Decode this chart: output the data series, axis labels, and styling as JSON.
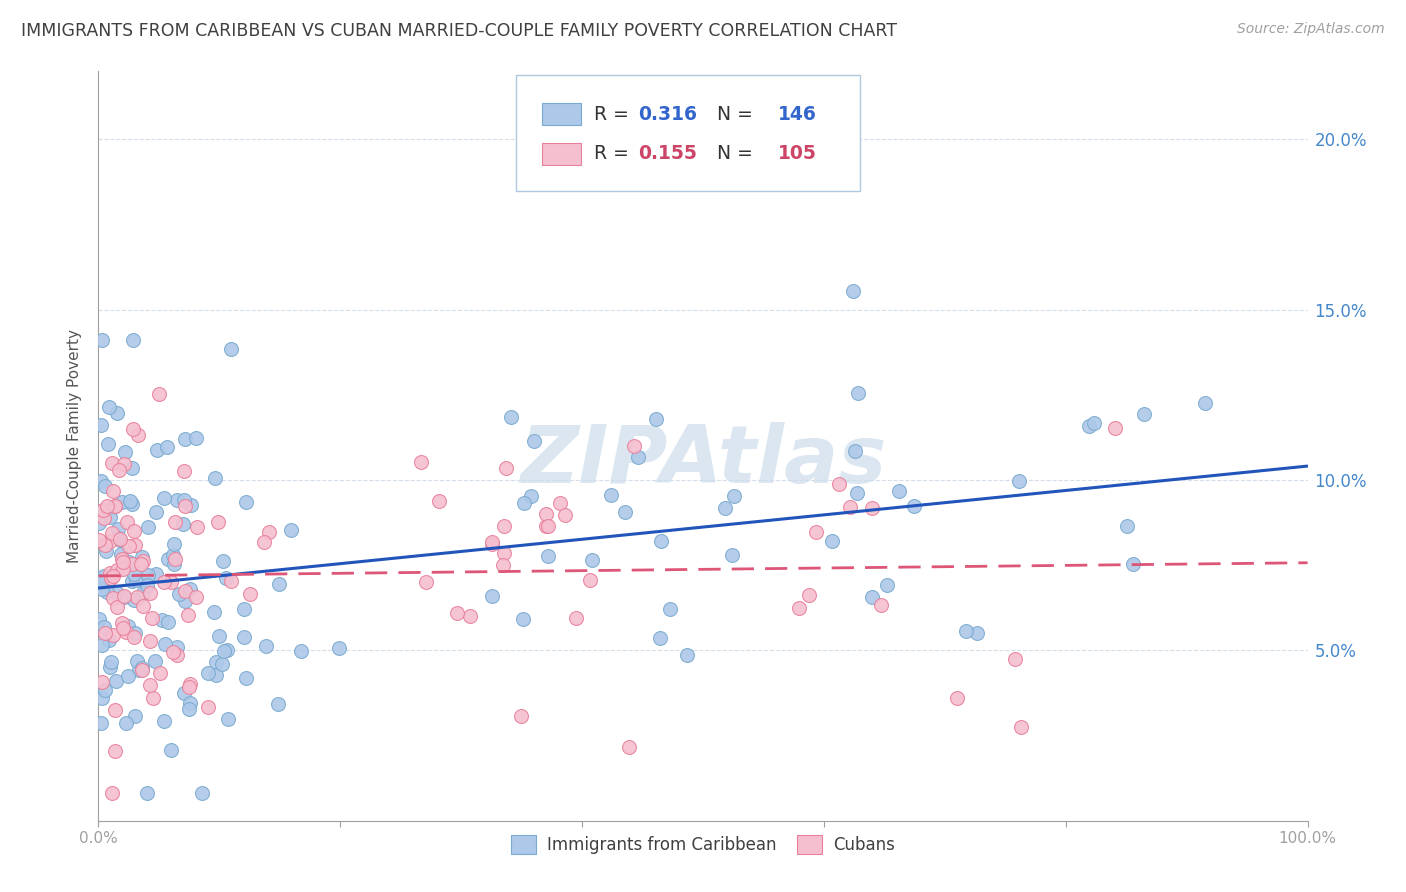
{
  "title": "IMMIGRANTS FROM CARIBBEAN VS CUBAN MARRIED-COUPLE FAMILY POVERTY CORRELATION CHART",
  "source": "Source: ZipAtlas.com",
  "ylabel": "Married-Couple Family Poverty",
  "yticks": [
    "5.0%",
    "10.0%",
    "15.0%",
    "20.0%"
  ],
  "ytick_vals": [
    5.0,
    10.0,
    15.0,
    20.0
  ],
  "blue_R": 0.316,
  "blue_N": 146,
  "pink_R": 0.155,
  "pink_N": 105,
  "blue_color": "#adc8e8",
  "blue_edge": "#7aaad0",
  "pink_color": "#f5bfcf",
  "pink_edge": "#e8809a",
  "blue_line_color": "#2255bb",
  "pink_line_color": "#dd5577",
  "title_color": "#404040",
  "axis_color": "#a0a0a0",
  "source_color": "#a0a0a0",
  "right_tick_color": "#4488cc",
  "grid_color": "#d5dde8",
  "background_color": "#ffffff",
  "watermark_color": "#ccdcec",
  "xmin": 0.0,
  "xmax": 100.0,
  "ymin": 0.0,
  "ymax": 22.0,
  "seed_blue": 7,
  "seed_pink": 13
}
